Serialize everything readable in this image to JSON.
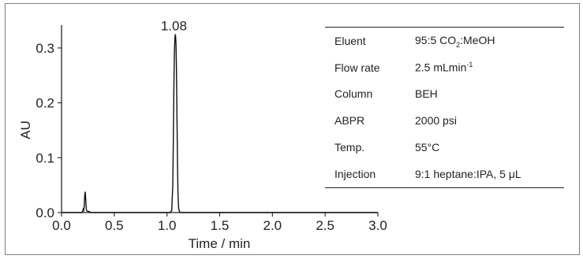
{
  "chart_data": {
    "type": "line",
    "xlabel": "Time / min",
    "ylabel": "AU",
    "xlim": [
      0.0,
      3.0
    ],
    "ylim": [
      0.0,
      0.33
    ],
    "xticks": [
      "0.0",
      "0.5",
      "1.0",
      "1.5",
      "2.0",
      "2.5",
      "3.0"
    ],
    "yticks": [
      "0.0",
      "0.1",
      "0.2",
      "0.3"
    ],
    "grid": false,
    "line_color": "#111111",
    "annotations": [
      {
        "text": "1.08",
        "x": 1.08,
        "y": 0.325
      }
    ],
    "series": [
      {
        "x": [
          0.0,
          0.19,
          0.2,
          0.205,
          0.21,
          0.215,
          0.22,
          0.225,
          0.23,
          0.235,
          0.24,
          0.25,
          0.26,
          0.27,
          0.28,
          1.0,
          1.03,
          1.045,
          1.055,
          1.06,
          1.065,
          1.07,
          1.075,
          1.08,
          1.085,
          1.09,
          1.095,
          1.1,
          1.105,
          1.11,
          1.12,
          1.14,
          3.0
        ],
        "y": [
          0.0,
          0.0,
          0.002,
          0.006,
          0.004,
          0.012,
          0.032,
          0.038,
          0.022,
          0.006,
          0.003,
          0.002,
          0.002,
          0.001,
          0.0,
          0.0,
          0.0,
          0.004,
          0.05,
          0.13,
          0.22,
          0.29,
          0.318,
          0.325,
          0.31,
          0.26,
          0.17,
          0.085,
          0.03,
          0.008,
          0.001,
          0.0,
          0.0
        ]
      }
    ]
  },
  "conditions_table": [
    {
      "key": "Eluent",
      "value_prefix": "95:5 CO",
      "sub": "2",
      "value_suffix": ":MeOH"
    },
    {
      "key": "Flow rate",
      "value_prefix": "2.5 mLmin",
      "sup": "-1"
    },
    {
      "key": "Column",
      "value_prefix": "BEH"
    },
    {
      "key": "ABPR",
      "value_prefix": "2000 psi"
    },
    {
      "key": "Temp.",
      "value_prefix": "55°C"
    },
    {
      "key": "Injection",
      "value_prefix": "9:1 heptane:IPA, 5 μL"
    }
  ]
}
